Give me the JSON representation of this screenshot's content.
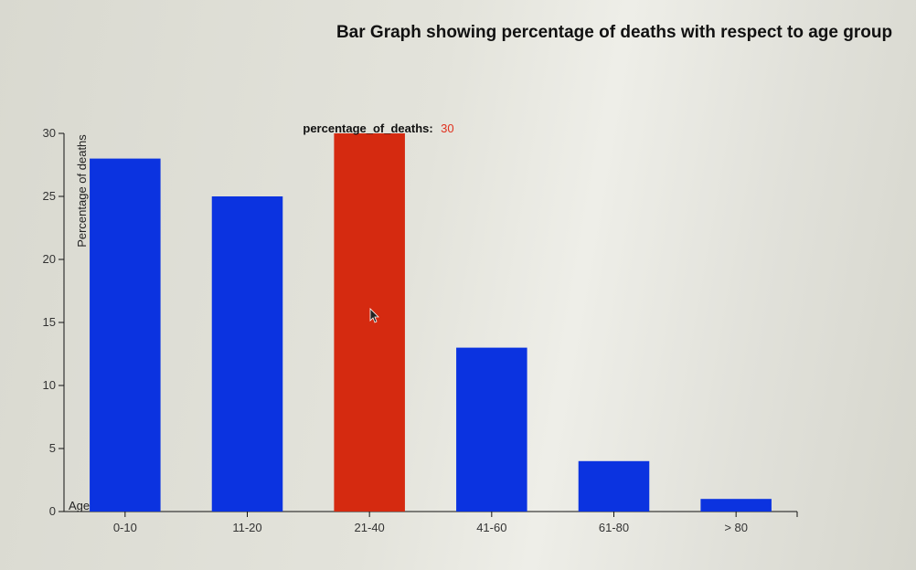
{
  "colors": {
    "bar": "#0b33e0",
    "highlight": "#d52a10"
  },
  "chart_data": {
    "type": "bar",
    "title": "Bar Graph showing percentage of deaths with respect to age group",
    "xlabel": "Age",
    "ylabel": "Percentage of deaths",
    "categories": [
      "0-10",
      "11-20",
      "21-40",
      "41-60",
      "61-80",
      "> 80"
    ],
    "values": [
      28,
      25,
      30,
      13,
      4,
      1
    ],
    "ylim": [
      0,
      30
    ],
    "yticks": [
      0,
      5,
      10,
      15,
      20,
      25,
      30
    ],
    "highlighted_index": 2,
    "grid": false
  },
  "tooltip": {
    "key": "percentage_of_deaths:",
    "value": "30"
  }
}
